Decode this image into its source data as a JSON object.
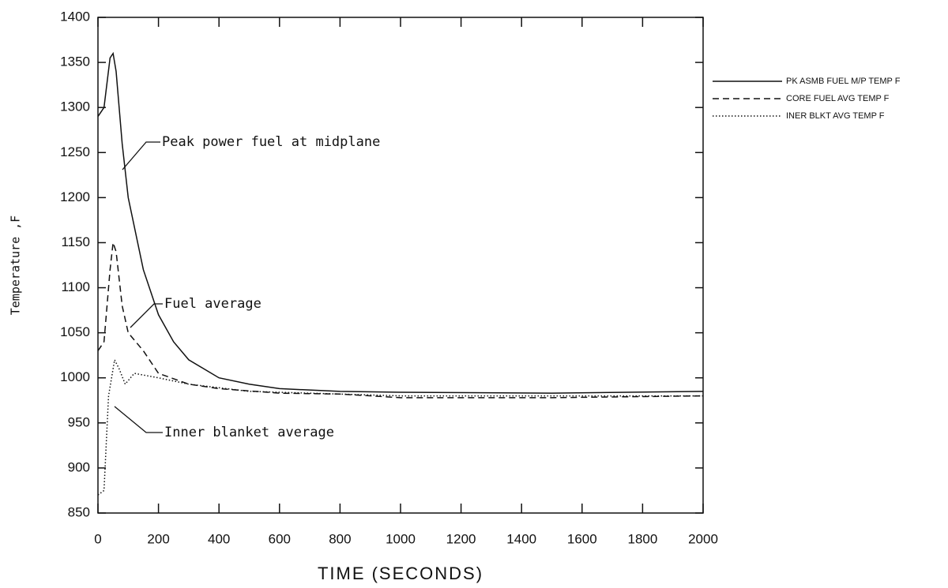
{
  "chart_data": {
    "type": "line",
    "xlabel": "TIME (SECONDS)",
    "ylabel": "Temperature ,F",
    "xlim": [
      0,
      2000
    ],
    "xticks": [
      0,
      200,
      400,
      600,
      800,
      1000,
      1200,
      1400,
      1600,
      1800,
      2000
    ],
    "ylim": [
      850,
      1400
    ],
    "yticks": [
      850,
      900,
      950,
      1000,
      1050,
      1100,
      1150,
      1200,
      1250,
      1300,
      1350,
      1400
    ],
    "series": [
      {
        "name": "PK ASMB FUEL M/P TEMP F",
        "color": "#111111",
        "dash": "solid",
        "x": [
          0,
          20,
          40,
          50,
          60,
          80,
          100,
          150,
          200,
          250,
          300,
          400,
          500,
          600,
          800,
          1000,
          1500,
          2000
        ],
        "values": [
          1290,
          1300,
          1355,
          1360,
          1340,
          1260,
          1200,
          1120,
          1070,
          1040,
          1020,
          1000,
          993,
          988,
          985,
          984,
          983,
          985
        ]
      },
      {
        "name": "CORE FUEL AVG TEMP F",
        "color": "#111111",
        "dash": "dashed",
        "x": [
          0,
          20,
          40,
          50,
          60,
          80,
          100,
          150,
          200,
          300,
          400,
          600,
          800,
          1000,
          1500,
          2000
        ],
        "values": [
          1030,
          1040,
          1120,
          1150,
          1140,
          1080,
          1050,
          1030,
          1005,
          993,
          988,
          983,
          982,
          978,
          978,
          980
        ]
      },
      {
        "name": "INER BLKT AVG TEMP F",
        "color": "#111111",
        "dash": "dotted",
        "x": [
          0,
          20,
          35,
          55,
          70,
          90,
          120,
          200,
          300,
          500,
          800,
          1000,
          1500,
          2000
        ],
        "values": [
          870,
          875,
          980,
          1020,
          1010,
          993,
          1005,
          1000,
          993,
          985,
          982,
          980,
          980,
          980
        ]
      }
    ],
    "annotations": [
      "Peak power fuel at midplane",
      "Fuel average",
      "Inner blanket average"
    ]
  }
}
